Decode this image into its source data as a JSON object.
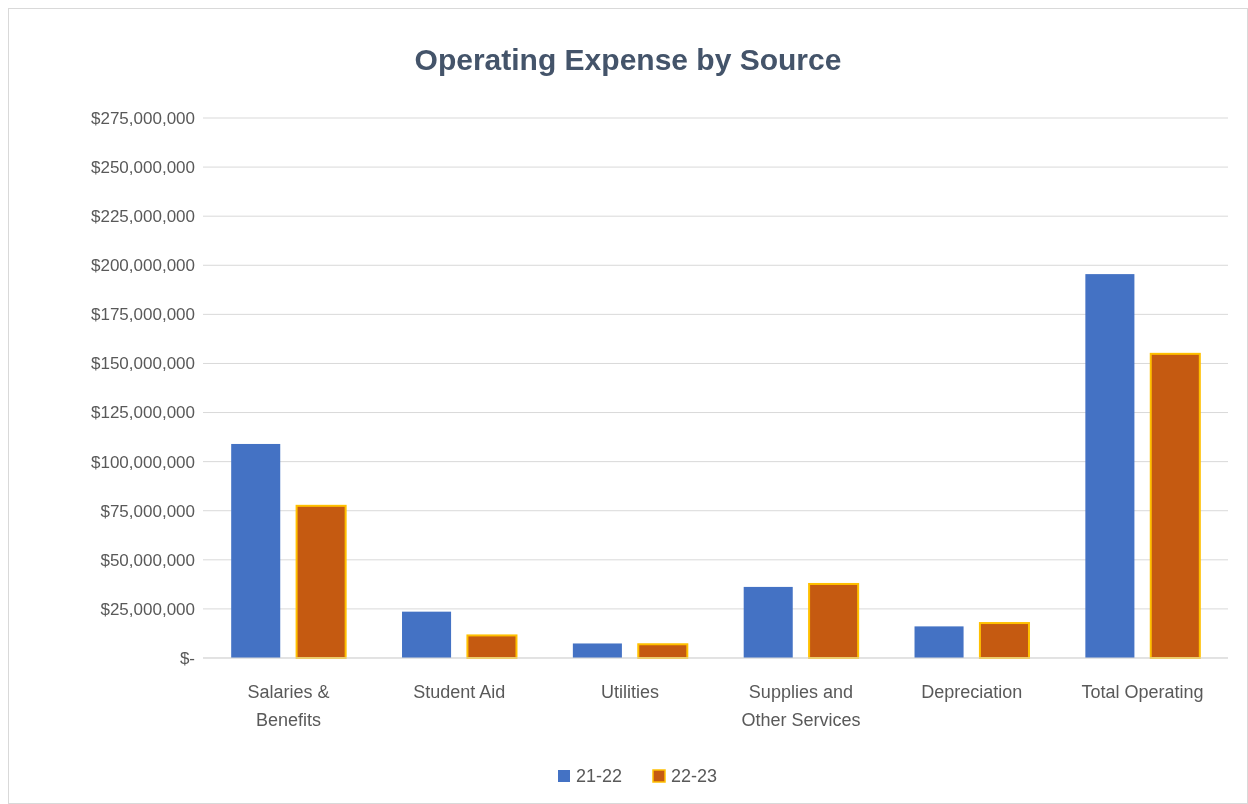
{
  "chart_data": {
    "type": "bar",
    "title": "Operating Expense by Source",
    "categories": [
      "Salaries & Benefits",
      "Student Aid",
      "Utilities",
      "Supplies and Other Services",
      "Depreciation",
      "Total Operating"
    ],
    "series": [
      {
        "name": "21-22",
        "color": "#4472c4",
        "values": [
          109000000,
          23600000,
          7400000,
          36200000,
          16100000,
          195500000
        ]
      },
      {
        "name": "22-23",
        "color": "#c55a11",
        "values": [
          77500000,
          11500000,
          7000000,
          37700000,
          17800000,
          154900000
        ]
      }
    ],
    "ylim": [
      0,
      275000000
    ],
    "yticks": [
      {
        "value": 0,
        "label": "$-"
      },
      {
        "value": 25000000,
        "label": "$25,000,000"
      },
      {
        "value": 50000000,
        "label": "$50,000,000"
      },
      {
        "value": 75000000,
        "label": "$75,000,000"
      },
      {
        "value": 100000000,
        "label": "$100,000,000"
      },
      {
        "value": 125000000,
        "label": "$125,000,000"
      },
      {
        "value": 150000000,
        "label": "$150,000,000"
      },
      {
        "value": 175000000,
        "label": "$175,000,000"
      },
      {
        "value": 200000000,
        "label": "$200,000,000"
      },
      {
        "value": 225000000,
        "label": "$225,000,000"
      },
      {
        "value": 250000000,
        "label": "$250,000,000"
      },
      {
        "value": 275000000,
        "label": "$275,000,000"
      }
    ],
    "grid": "y",
    "legend": "bottom"
  }
}
